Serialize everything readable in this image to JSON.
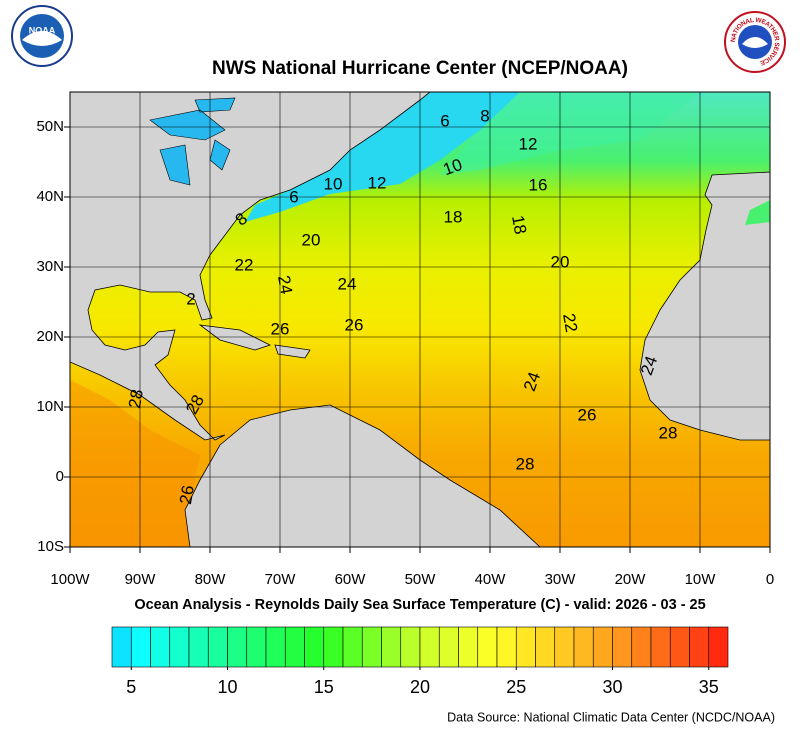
{
  "title": "NWS National Hurricane Center (NCEP/NOAA)",
  "subtitle": "Ocean Analysis - Reynolds Daily Sea Surface Temperature (C) - valid: 2026 - 03 - 25",
  "source": "Data Source: National Climatic Data Center (NCDC/NOAA)",
  "logos": {
    "noaa": "NOAA",
    "nws": "NATIONAL WEATHER SERVICE"
  },
  "map": {
    "xlim": [
      -100,
      0
    ],
    "ylim": [
      -10,
      55
    ],
    "xticks": [
      {
        "value": -100,
        "label": "100W"
      },
      {
        "value": -90,
        "label": "90W"
      },
      {
        "value": -80,
        "label": "80W"
      },
      {
        "value": -70,
        "label": "70W"
      },
      {
        "value": -60,
        "label": "60W"
      },
      {
        "value": -50,
        "label": "50W"
      },
      {
        "value": -40,
        "label": "40W"
      },
      {
        "value": -30,
        "label": "30W"
      },
      {
        "value": -20,
        "label": "20W"
      },
      {
        "value": -10,
        "label": "10W"
      },
      0
    ],
    "yticks": [
      {
        "value": -10,
        "label": "10S"
      },
      0,
      {
        "value": 10,
        "label": "10N"
      },
      {
        "value": 20,
        "label": "20N"
      },
      {
        "value": 30,
        "label": "30N"
      },
      {
        "value": 40,
        "label": "40N"
      },
      {
        "value": 50,
        "label": "50N"
      }
    ],
    "contour_labels": [
      "6",
      "8",
      "12",
      "10",
      "16",
      "10",
      "12",
      "6",
      "8",
      "18",
      "18",
      "20",
      "20",
      "22",
      "24",
      "24",
      "2",
      "26",
      "26",
      "22",
      "24",
      "28",
      "28",
      "24",
      "26",
      "28",
      "28",
      "26"
    ]
  },
  "colorbar": {
    "lim": [
      4,
      36
    ],
    "ticks": [
      5,
      10,
      15,
      20,
      25,
      30,
      35
    ]
  }
}
